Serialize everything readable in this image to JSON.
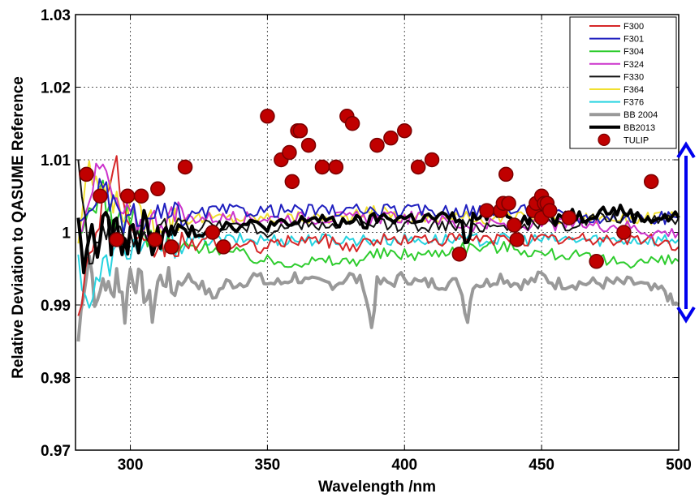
{
  "chart_data": {
    "type": "line",
    "xlabel": "Wavelength /nm",
    "ylabel": "Relative Deviation to QASUME Reference",
    "xlim": [
      280,
      500
    ],
    "ylim": [
      0.97,
      1.03
    ],
    "xticks": [
      "300",
      "350",
      "400",
      "450",
      "500"
    ],
    "xtick_values": [
      300,
      350,
      400,
      450,
      500
    ],
    "yticks": [
      "0.97",
      "0.98",
      "0.99",
      "1",
      "1.01",
      "1.02",
      "1.03"
    ],
    "ytick_values": [
      0.97,
      0.98,
      0.99,
      1.0,
      1.01,
      1.02,
      1.03
    ],
    "grid": "dotted",
    "legend_position": "top-right",
    "annotation": "double-headed arrow spanning 0.99 to 1.01 on the right side of the plot",
    "annotation_color": "#0000ee",
    "series": [
      {
        "name": "F300",
        "color": "#d62728",
        "width": 2,
        "x": [
          281,
          285,
          290,
          295,
          300,
          305,
          310,
          320,
          330,
          340,
          350,
          360,
          370,
          380,
          390,
          400,
          410,
          420,
          430,
          440,
          450,
          460,
          470,
          480,
          490,
          500
        ],
        "y": [
          0.99,
          0.996,
          1.005,
          1.009,
          0.999,
          0.997,
          0.998,
          0.998,
          0.999,
          0.998,
          0.998,
          0.999,
          0.999,
          0.998,
          0.999,
          0.999,
          0.999,
          0.999,
          0.999,
          0.999,
          0.999,
          0.999,
          0.999,
          0.999,
          0.999,
          0.998
        ]
      },
      {
        "name": "F301",
        "color": "#1f1fbf",
        "width": 2,
        "x": [
          281,
          285,
          290,
          295,
          300,
          305,
          310,
          320,
          330,
          340,
          350,
          360,
          370,
          380,
          390,
          400,
          410,
          420,
          430,
          440,
          450,
          460,
          470,
          480,
          490,
          500
        ],
        "y": [
          1.0,
          1.004,
          1.006,
          1.002,
          1.002,
          1.001,
          1.002,
          1.002,
          1.003,
          1.003,
          1.003,
          1.003,
          1.003,
          1.003,
          1.003,
          1.003,
          1.003,
          1.003,
          1.003,
          1.003,
          1.003,
          1.002,
          1.002,
          1.002,
          1.002,
          1.002
        ]
      },
      {
        "name": "F304",
        "color": "#2ecc2e",
        "width": 2,
        "x": [
          281,
          285,
          290,
          295,
          300,
          305,
          310,
          320,
          330,
          340,
          350,
          360,
          370,
          380,
          390,
          400,
          410,
          420,
          430,
          440,
          450,
          460,
          470,
          480,
          490,
          500
        ],
        "y": [
          0.998,
          1.003,
          1.006,
          1.0,
          1.003,
          0.999,
          0.998,
          0.998,
          0.998,
          0.997,
          0.996,
          0.996,
          0.996,
          0.996,
          0.997,
          0.997,
          0.997,
          0.998,
          0.998,
          0.998,
          0.997,
          0.997,
          0.996,
          0.996,
          0.996,
          0.996
        ]
      },
      {
        "name": "F324",
        "color": "#cc33cc",
        "width": 2,
        "x": [
          281,
          285,
          290,
          295,
          300,
          305,
          310,
          320,
          330,
          340,
          350,
          360,
          370,
          380,
          390,
          400,
          410,
          420,
          430,
          440,
          450,
          460,
          470,
          480,
          490,
          500
        ],
        "y": [
          1.0,
          1.006,
          1.009,
          1.003,
          1.002,
          1.001,
          1.002,
          1.002,
          1.002,
          1.002,
          1.002,
          1.002,
          1.002,
          1.002,
          1.002,
          1.002,
          1.002,
          1.001,
          1.001,
          1.001,
          1.001,
          1.001,
          1.001,
          1.001,
          1.0,
          1.0
        ]
      },
      {
        "name": "F330",
        "color": "#111111",
        "width": 2,
        "x": [
          281,
          285,
          290,
          295,
          300,
          305,
          310,
          320,
          330,
          340,
          350,
          360,
          370,
          380,
          390,
          400,
          410,
          420,
          430,
          440,
          450,
          460,
          470,
          480,
          490,
          500
        ],
        "y": [
          1.012,
          0.996,
          1.001,
          0.999,
          1.0,
          1.0,
          1.0,
          1.001,
          1.001,
          1.001,
          1.0,
          1.001,
          1.001,
          1.001,
          1.001,
          1.001,
          1.001,
          1.001,
          1.001,
          1.001,
          1.001,
          1.001,
          1.002,
          1.002,
          1.002,
          1.002
        ]
      },
      {
        "name": "F364",
        "color": "#f1e030",
        "width": 2,
        "x": [
          281,
          285,
          290,
          295,
          300,
          305,
          310,
          320,
          330,
          340,
          350,
          360,
          370,
          380,
          390,
          400,
          410,
          420,
          430,
          440,
          450,
          460,
          470,
          480,
          490,
          500
        ],
        "y": [
          0.999,
          1.008,
          1.006,
          1.004,
          1.003,
          1.002,
          1.002,
          1.002,
          1.002,
          1.002,
          1.002,
          1.002,
          1.002,
          1.002,
          1.003,
          1.002,
          1.002,
          1.002,
          1.002,
          1.002,
          1.002,
          1.002,
          1.002,
          1.002,
          1.002,
          1.002
        ]
      },
      {
        "name": "F376",
        "color": "#27d3e0",
        "width": 2,
        "x": [
          281,
          285,
          290,
          295,
          300,
          305,
          310,
          320,
          330,
          340,
          350,
          360,
          370,
          380,
          390,
          400,
          410,
          420,
          430,
          440,
          450,
          460,
          470,
          480,
          490,
          500
        ],
        "y": [
          0.996,
          0.99,
          0.995,
          0.997,
          0.998,
          0.998,
          0.998,
          0.999,
          0.999,
          0.999,
          0.999,
          0.999,
          0.999,
          0.999,
          0.999,
          0.999,
          0.999,
          0.999,
          0.999,
          0.999,
          0.999,
          0.999,
          0.999,
          0.999,
          0.999,
          0.999
        ]
      },
      {
        "name": "BB 2004",
        "color": "#999999",
        "width": 4,
        "x": [
          281,
          283,
          285,
          288,
          290,
          293,
          295,
          298,
          300,
          303,
          305,
          308,
          310,
          313,
          315,
          320,
          325,
          330,
          335,
          340,
          345,
          350,
          355,
          360,
          365,
          370,
          375,
          380,
          385,
          388,
          390,
          395,
          400,
          405,
          410,
          415,
          420,
          423,
          425,
          430,
          435,
          440,
          445,
          450,
          455,
          460,
          465,
          470,
          475,
          480,
          485,
          490,
          495,
          498,
          500
        ],
        "y": [
          0.985,
          0.993,
          0.997,
          0.989,
          0.994,
          0.991,
          0.995,
          0.989,
          0.995,
          0.993,
          0.992,
          0.989,
          0.993,
          0.994,
          0.992,
          0.994,
          0.993,
          0.991,
          0.993,
          0.993,
          0.994,
          0.993,
          0.993,
          0.994,
          0.993,
          0.993,
          0.993,
          0.994,
          0.993,
          0.987,
          0.993,
          0.993,
          0.994,
          0.993,
          0.993,
          0.993,
          0.993,
          0.988,
          0.993,
          0.993,
          0.994,
          0.993,
          0.993,
          0.994,
          0.993,
          0.993,
          0.993,
          0.993,
          0.993,
          0.993,
          0.993,
          0.992,
          0.992,
          0.99,
          0.99
        ]
      },
      {
        "name": "BB2013",
        "color": "#000000",
        "width": 4,
        "x": [
          281,
          283,
          285,
          288,
          290,
          293,
          295,
          298,
          300,
          303,
          305,
          308,
          310,
          313,
          315,
          320,
          325,
          330,
          335,
          340,
          345,
          350,
          355,
          360,
          365,
          370,
          375,
          380,
          385,
          390,
          395,
          400,
          405,
          410,
          415,
          420,
          423,
          425,
          430,
          435,
          440,
          445,
          450,
          455,
          460,
          465,
          470,
          475,
          480,
          485,
          490,
          495,
          500
        ],
        "y": [
          1.003,
          0.993,
          1.001,
          0.997,
          1.002,
          0.999,
          1.0,
          0.998,
          1.0,
          0.999,
          1.001,
          0.999,
          1.0,
          0.999,
          1.0,
          1.0,
          1.0,
          1.001,
          1.001,
          1.001,
          1.001,
          1.001,
          1.001,
          1.001,
          1.002,
          1.002,
          1.001,
          1.002,
          1.001,
          1.002,
          1.002,
          1.002,
          1.002,
          1.002,
          1.002,
          1.002,
          0.998,
          1.002,
          1.002,
          1.003,
          1.002,
          1.002,
          1.003,
          1.002,
          1.003,
          1.002,
          1.003,
          1.003,
          1.003,
          1.002,
          1.002,
          1.002,
          1.002
        ]
      },
      {
        "name": "TULIP",
        "color": "#c00000",
        "type": "scatter",
        "x": [
          284,
          289,
          295,
          299,
          304,
          309,
          310,
          315,
          320,
          330,
          334,
          350,
          355,
          358,
          359,
          361,
          362,
          365,
          370,
          375,
          379,
          381,
          390,
          395,
          400,
          405,
          410,
          420,
          430,
          435,
          436,
          437,
          438,
          440,
          441,
          447,
          448,
          450,
          450,
          451,
          452,
          453,
          460,
          470,
          480,
          490
        ],
        "y": [
          1.008,
          1.005,
          0.999,
          1.005,
          1.005,
          0.999,
          1.006,
          0.998,
          1.009,
          1.0,
          0.998,
          1.016,
          1.01,
          1.011,
          1.007,
          1.014,
          1.014,
          1.012,
          1.009,
          1.009,
          1.016,
          1.015,
          1.012,
          1.013,
          1.014,
          1.009,
          1.01,
          0.997,
          1.003,
          1.003,
          1.004,
          1.008,
          1.004,
          1.001,
          0.999,
          1.003,
          1.004,
          1.002,
          1.005,
          1.004,
          1.004,
          1.003,
          1.002,
          0.996,
          1.0,
          1.007
        ]
      }
    ]
  }
}
